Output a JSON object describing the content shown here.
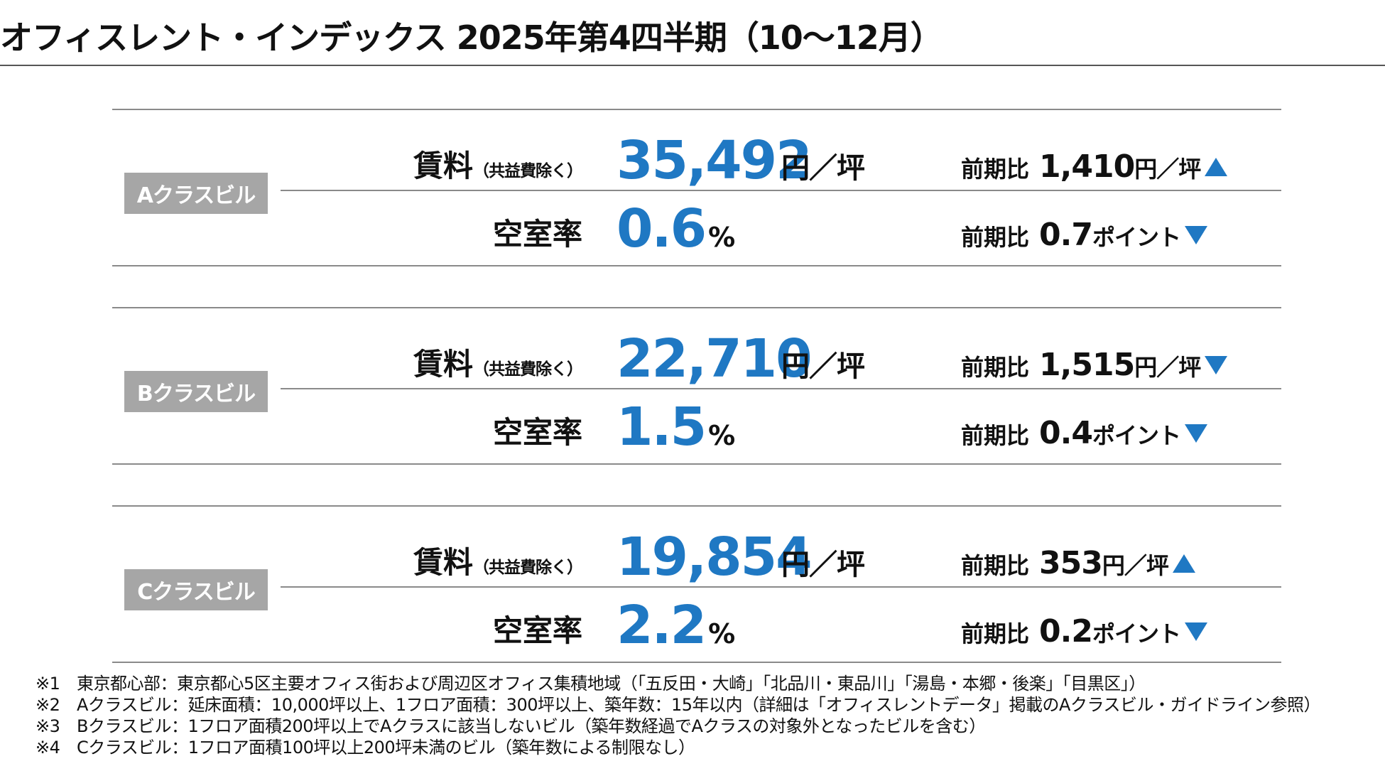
{
  "header": {
    "title": "オフィスレント・インデックス 2025年第4四半期（10～12月）"
  },
  "labels": {
    "rent": "賃料",
    "rent_note": "（共益費除く）",
    "vacancy": "空室率",
    "compare": "前期比",
    "rent_unit": "円／坪",
    "pct_unit": "%",
    "point_unit": "ポイント"
  },
  "sections": [
    {
      "badge": "Aクラスビル",
      "rent_value": "35,492",
      "rent_change": "1,410",
      "rent_change_unit": "円／坪",
      "rent_direction": "up",
      "vacancy_value": "0.6",
      "vacancy_change": "0.7",
      "vacancy_direction": "down"
    },
    {
      "badge": "Bクラスビル",
      "rent_value": "22,710",
      "rent_change": "1,515",
      "rent_change_unit": "円／坪",
      "rent_direction": "down",
      "vacancy_value": "1.5",
      "vacancy_change": "0.4",
      "vacancy_direction": "down"
    },
    {
      "badge": "Cクラスビル",
      "rent_value": "19,854",
      "rent_change": "353",
      "rent_change_unit": "円／坪",
      "rent_direction": "up",
      "vacancy_value": "2.2",
      "vacancy_change": "0.2",
      "vacancy_direction": "down"
    }
  ],
  "footnotes": [
    {
      "mark": "※1",
      "text": "東京都心部：東京都心5区主要オフィス街および周辺区オフィス集積地域（「五反田・大崎」「北品川・東品川」「湯島・本郷・後楽」「目黒区」）"
    },
    {
      "mark": "※2",
      "text": "Aクラスビル：延床面積：10,000坪以上、1フロア面積：300坪以上、築年数：15年以内（詳細は「オフィスレントデータ」掲載のAクラスビル・ガイドライン参照）"
    },
    {
      "mark": "※3",
      "text": "Bクラスビル：1フロア面積200坪以上でAクラスに該当しないビル（築年数経過でAクラスの対象外となったビルを含む）"
    },
    {
      "mark": "※4",
      "text": "Cクラスビル：1フロア面積100坪以上200坪未満のビル（築年数による制限なし）"
    }
  ],
  "colors": {
    "accent": "#1f78c3",
    "badge_bg": "#a6a6a6",
    "rule": "#8a8a8a"
  }
}
